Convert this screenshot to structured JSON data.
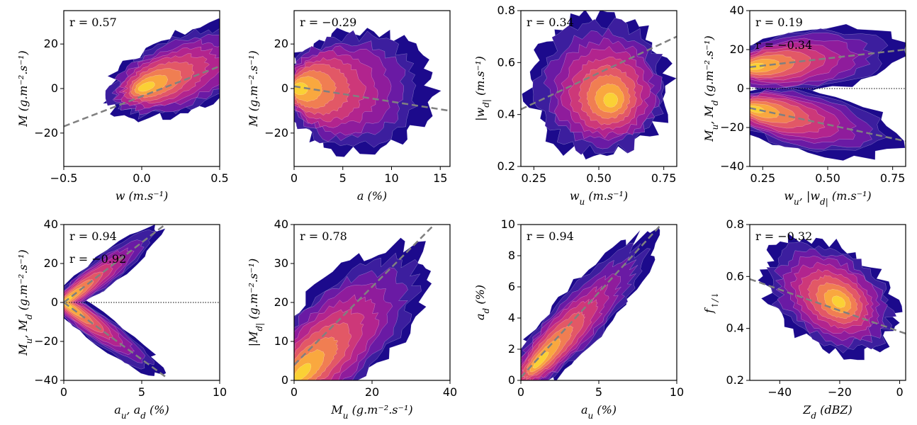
{
  "colors": {
    "levels": [
      "#1c0a8c",
      "#3c1e9e",
      "#6a1aa4",
      "#8f1c9c",
      "#b2248e",
      "#cd3879",
      "#e25866",
      "#f07e52",
      "#f9a83f",
      "#fad135"
    ],
    "fit_line": "#808080",
    "zero_line": "#000000"
  },
  "chart_data": [
    {
      "type": "heatmap",
      "xlabel": "w (m.s⁻¹)",
      "ylabel": "M (g.m⁻².s⁻¹)",
      "xlim": [
        -0.5,
        0.5
      ],
      "ylim": [
        -35,
        35
      ],
      "xticks": [
        -0.5,
        0.0,
        0.5
      ],
      "xticklabels": [
        "−0.5",
        "0.0",
        "0.5"
      ],
      "yticks": [
        -20,
        0,
        20
      ],
      "yticklabels": [
        "−20",
        "0",
        "20"
      ],
      "annotations": [
        "r = 0.57"
      ],
      "fit_lines": [
        {
          "x": [
            -0.5,
            0.5
          ],
          "y": [
            -17,
            10
          ]
        }
      ],
      "density": {
        "shape": "s_curve",
        "center": [
          0.0,
          0.0
        ],
        "extent": [
          -0.45,
          0.4,
          -32,
          30
        ]
      }
    },
    {
      "type": "heatmap",
      "xlabel": "a (%)",
      "ylabel": "M (g.m⁻².s⁻¹)",
      "xlim": [
        0,
        16
      ],
      "ylim": [
        -35,
        35
      ],
      "xticks": [
        0,
        5,
        10,
        15
      ],
      "xticklabels": [
        "0",
        "5",
        "10",
        "15"
      ],
      "yticks": [
        -20,
        0,
        20
      ],
      "yticklabels": [
        "−20",
        "0",
        "20"
      ],
      "annotations": [
        "r = −0.29"
      ],
      "fit_lines": [
        {
          "x": [
            0,
            16
          ],
          "y": [
            1,
            -10
          ]
        }
      ],
      "density": {
        "shape": "fan_left",
        "center": [
          1,
          0
        ],
        "extent": [
          0,
          15,
          -30,
          28
        ]
      }
    },
    {
      "type": "heatmap",
      "xlabel": "w_u (m.s⁻¹)",
      "ylabel": "|w_d| (m.s⁻¹)",
      "xlim": [
        0.2,
        0.8
      ],
      "ylim": [
        0.2,
        0.8
      ],
      "xticks": [
        0.25,
        0.5,
        0.75
      ],
      "xticklabels": [
        "0.25",
        "0.50",
        "0.75"
      ],
      "yticks": [
        0.2,
        0.4,
        0.6,
        0.8
      ],
      "yticklabels": [
        "0.2",
        "0.4",
        "0.6",
        "0.8"
      ],
      "annotations": [
        "r = 0.34"
      ],
      "fit_lines": [
        {
          "x": [
            0.2,
            0.8
          ],
          "y": [
            0.42,
            0.7
          ]
        }
      ],
      "density": {
        "shape": "blob",
        "center": [
          0.55,
          0.45
        ],
        "extent": [
          0.22,
          0.79,
          0.22,
          0.8
        ]
      }
    },
    {
      "type": "heatmap",
      "xlabel": "w_u, |w_d| (m.s⁻¹)",
      "ylabel": "M_u, M_d (g.m⁻².s⁻¹)",
      "xlim": [
        0.2,
        0.8
      ],
      "ylim": [
        -40,
        40
      ],
      "xticks": [
        0.25,
        0.5,
        0.75
      ],
      "xticklabels": [
        "0.25",
        "0.50",
        "0.75"
      ],
      "yticks": [
        -40,
        -20,
        0,
        20,
        40
      ],
      "yticklabels": [
        "−40",
        "−20",
        "0",
        "20",
        "40"
      ],
      "annotations": [
        "r = 0.19",
        "r = −0.34"
      ],
      "zero_line": true,
      "fit_lines": [
        {
          "x": [
            0.2,
            0.8
          ],
          "y": [
            11,
            20
          ]
        },
        {
          "x": [
            0.2,
            0.8
          ],
          "y": [
            -10,
            -27
          ]
        }
      ],
      "density": {
        "shape": "twin_fan",
        "center": [
          0.33,
          0
        ],
        "extent": [
          0.22,
          0.79,
          -38,
          38
        ]
      }
    },
    {
      "type": "heatmap",
      "xlabel": "a_u, a_d (%)",
      "ylabel": "M_u, M_d (g.m⁻².s⁻¹)",
      "xlim": [
        0,
        10
      ],
      "ylim": [
        -40,
        40
      ],
      "xticks": [
        0,
        5,
        10
      ],
      "xticklabels": [
        "0",
        "5",
        "10"
      ],
      "yticks": [
        -40,
        -20,
        0,
        20,
        40
      ],
      "yticklabels": [
        "−40",
        "−20",
        "0",
        "20",
        "40"
      ],
      "annotations": [
        "r = 0.94",
        "r = −0.92"
      ],
      "zero_line": true,
      "fit_lines": [
        {
          "x": [
            0,
            6.5
          ],
          "y": [
            0,
            40
          ]
        },
        {
          "x": [
            0,
            6.5
          ],
          "y": [
            0,
            -38
          ]
        }
      ],
      "density": {
        "shape": "twin_wedge",
        "center": [
          0.5,
          0
        ],
        "extent": [
          0,
          9.5,
          -38,
          38
        ]
      }
    },
    {
      "type": "heatmap",
      "xlabel": "M_u (g.m⁻².s⁻¹)",
      "ylabel": "|M_d| (g.m⁻².s⁻¹)",
      "xlim": [
        0,
        40
      ],
      "ylim": [
        0,
        40
      ],
      "xticks": [
        0,
        20,
        40
      ],
      "xticklabels": [
        "0",
        "20",
        "40"
      ],
      "yticks": [
        0,
        10,
        20,
        30,
        40
      ],
      "yticklabels": [
        "0",
        "10",
        "20",
        "30",
        "40"
      ],
      "annotations": [
        "r = 0.78"
      ],
      "fit_lines": [
        {
          "x": [
            0,
            36
          ],
          "y": [
            4,
            40
          ]
        }
      ],
      "density": {
        "shape": "corner",
        "center": [
          1,
          1
        ],
        "extent": [
          0,
          33,
          0,
          40
        ]
      }
    },
    {
      "type": "heatmap",
      "xlabel": "a_u (%)",
      "ylabel": "a_d (%)",
      "xlim": [
        0,
        10
      ],
      "ylim": [
        0,
        10
      ],
      "xticks": [
        0,
        5,
        10
      ],
      "xticklabels": [
        "0",
        "5",
        "10"
      ],
      "yticks": [
        0,
        2,
        4,
        6,
        8,
        10
      ],
      "yticklabels": [
        "0",
        "2",
        "4",
        "6",
        "8",
        "10"
      ],
      "annotations": [
        "r = 0.94"
      ],
      "fit_lines": [
        {
          "x": [
            0,
            9
          ],
          "y": [
            0.2,
            10
          ]
        }
      ],
      "density": {
        "shape": "diagonal",
        "center": [
          1,
          1
        ],
        "extent": [
          0,
          9.5,
          0,
          10
        ]
      }
    },
    {
      "type": "heatmap",
      "xlabel": "Z_d (dBZ)",
      "ylabel": "f_↑/↓",
      "xlim": [
        -50,
        2
      ],
      "ylim": [
        0.2,
        0.8
      ],
      "xticks": [
        -40,
        -20,
        0
      ],
      "xticklabels": [
        "−40",
        "−20",
        "0"
      ],
      "yticks": [
        0.2,
        0.4,
        0.6,
        0.8
      ],
      "yticklabels": [
        "0.2",
        "0.4",
        "0.6",
        "0.8"
      ],
      "annotations": [
        "r = −0.32"
      ],
      "fit_lines": [
        {
          "x": [
            -50,
            2
          ],
          "y": [
            0.59,
            0.38
          ]
        }
      ],
      "density": {
        "shape": "blob_tilt",
        "center": [
          -20,
          0.5
        ],
        "extent": [
          -47,
          0,
          0.25,
          0.8
        ]
      }
    }
  ]
}
